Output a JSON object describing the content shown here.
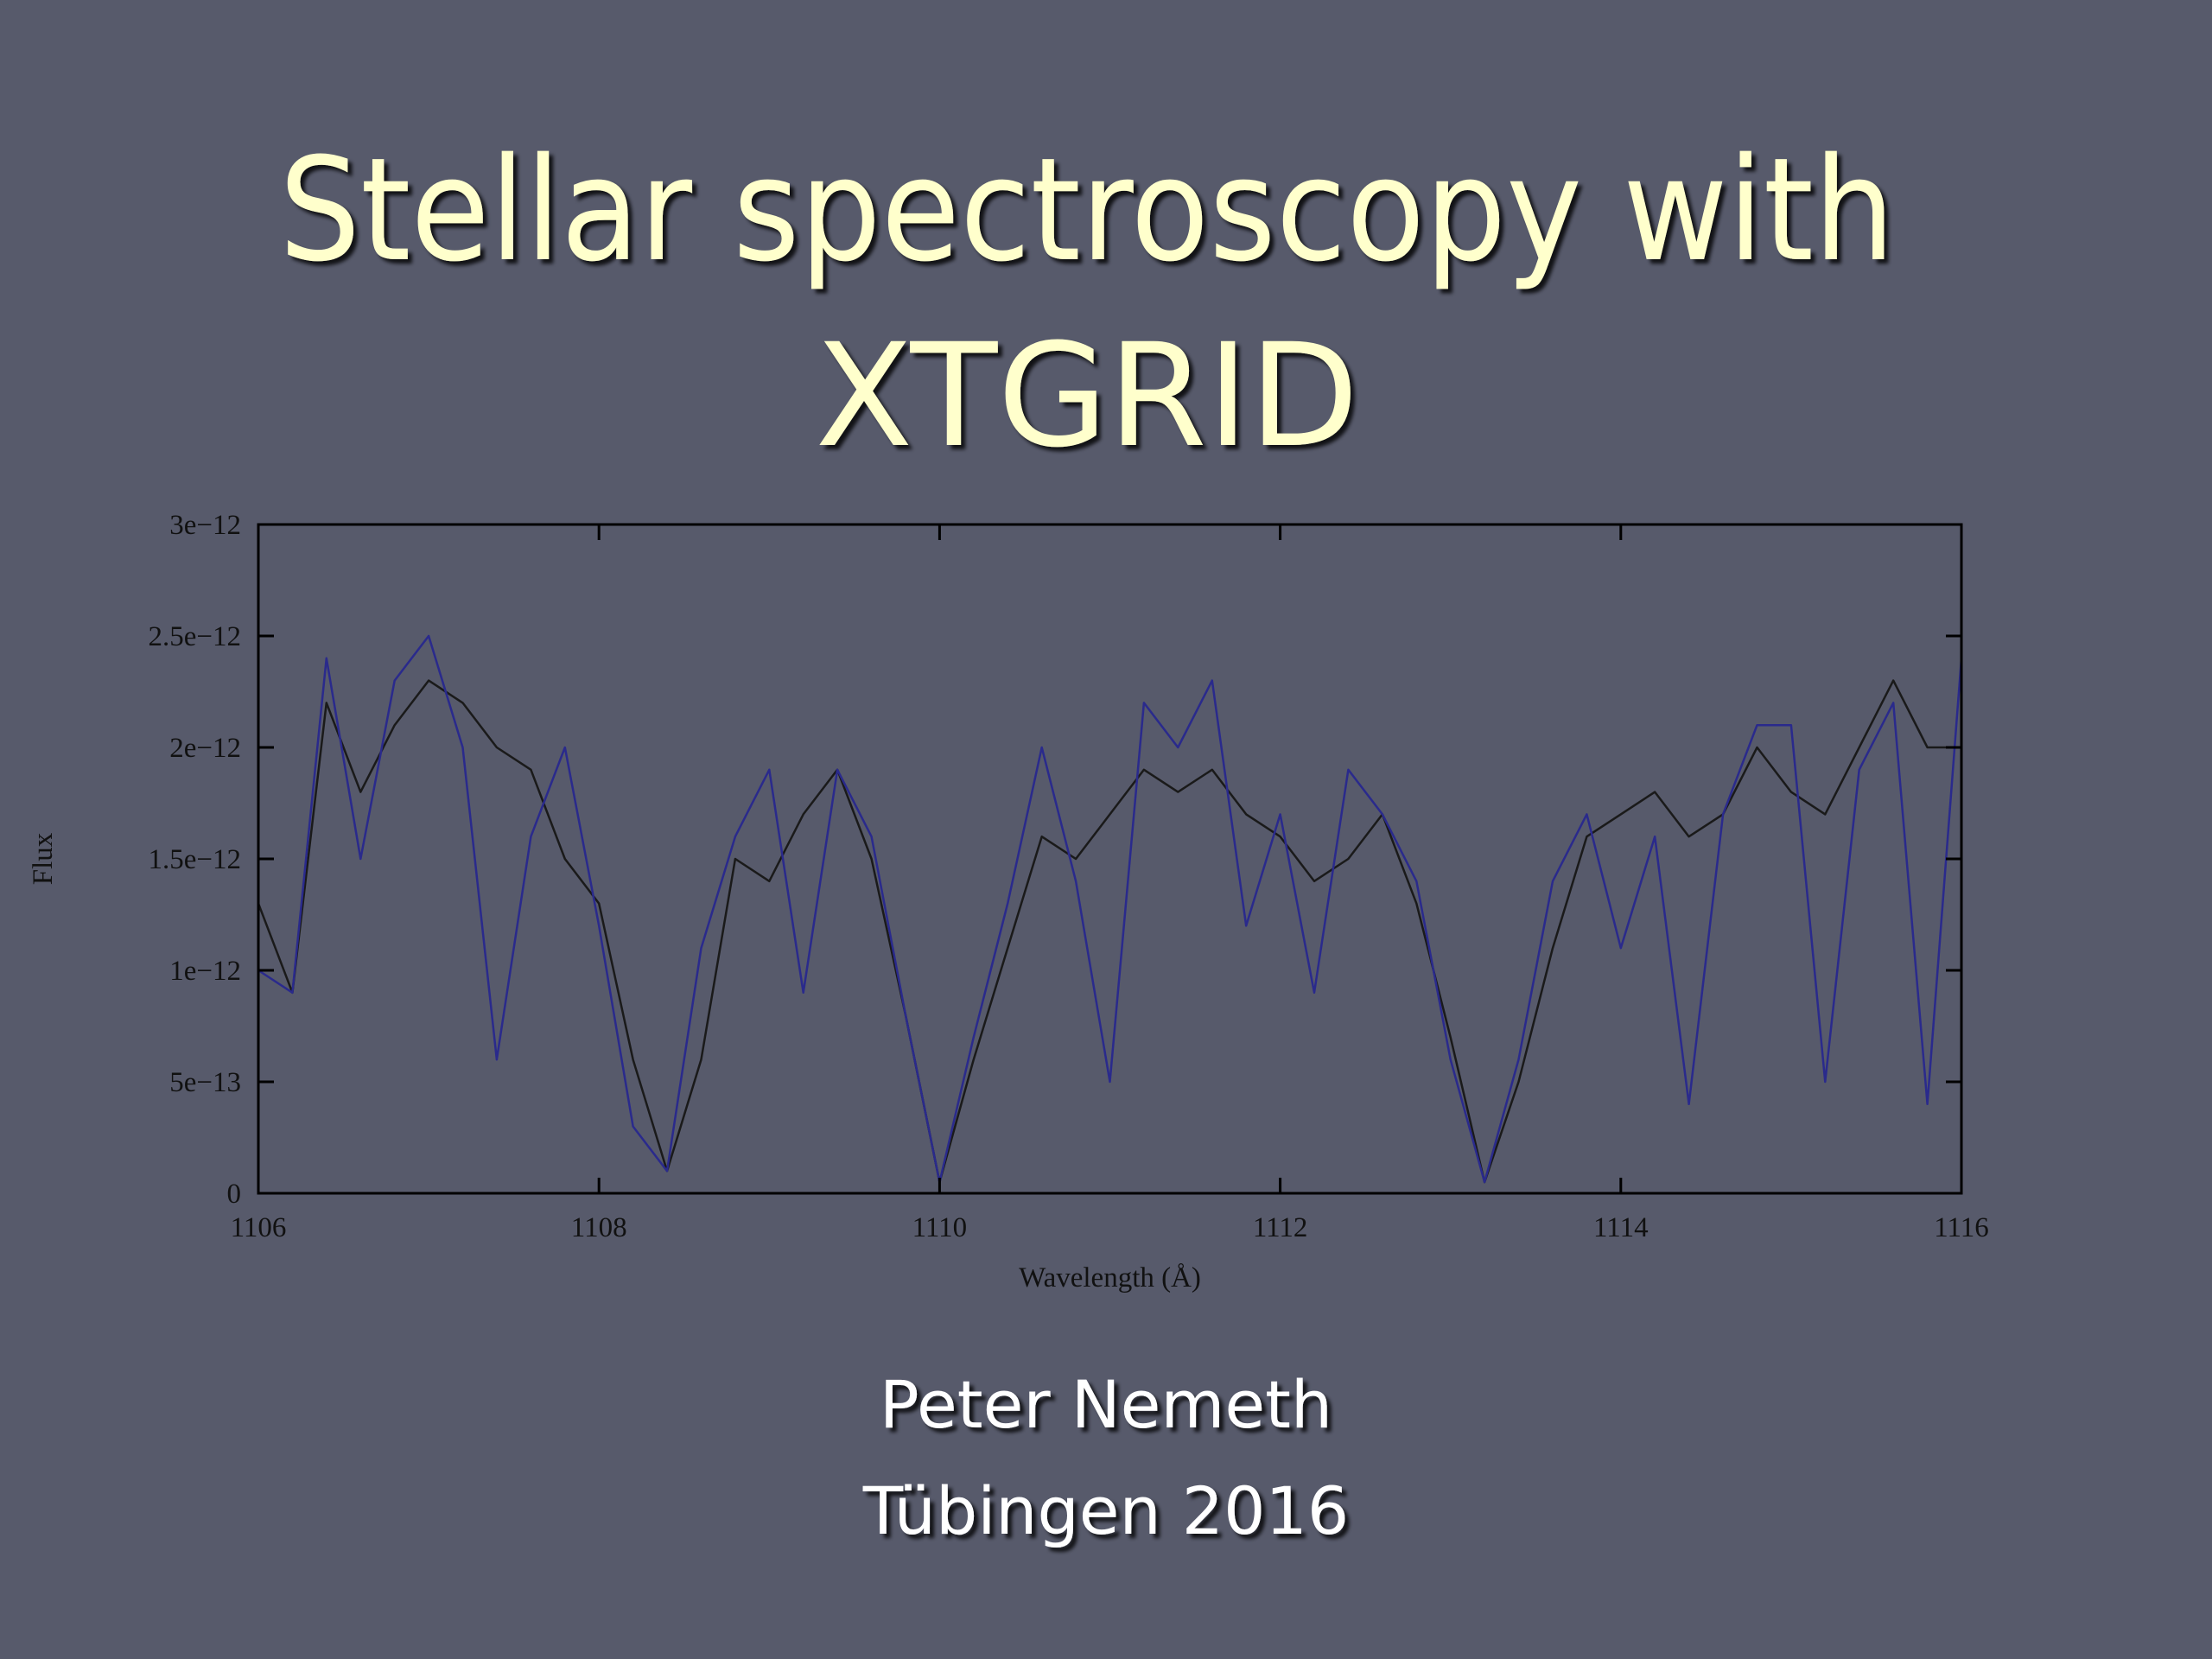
{
  "slide": {
    "title_line1": "Stellar spectroscopy with",
    "title_line2": "XTGRID",
    "author": "Peter Nemeth",
    "event": "Tübingen 2016"
  },
  "chart_data": {
    "type": "line",
    "xlabel": "Wavelength (Å)",
    "ylabel": "Flux",
    "x": [
      1106,
      1106.2,
      1106.4,
      1106.6,
      1106.8,
      1107,
      1107.2,
      1107.4,
      1107.6,
      1107.8,
      1108,
      1108.2,
      1108.4,
      1108.6,
      1108.8,
      1109,
      1109.2,
      1109.4,
      1109.6,
      1109.8,
      1110,
      1110.2,
      1110.4,
      1110.6,
      1110.8,
      1111,
      1111.2,
      1111.4,
      1111.6,
      1111.8,
      1112,
      1112.2,
      1112.4,
      1112.6,
      1112.8,
      1113,
      1113.2,
      1113.4,
      1113.6,
      1113.8,
      1114,
      1114.2,
      1114.4,
      1114.6,
      1114.8,
      1115,
      1115.2,
      1115.4,
      1115.6,
      1115.8,
      1116
    ],
    "series": [
      {
        "color": "#1a1a1a",
        "values": [
          1.3e-12,
          9e-13,
          2.2e-12,
          1.8e-12,
          2.1e-12,
          2.3e-12,
          2.2e-12,
          2e-12,
          1.9e-12,
          1.5e-12,
          1.3e-12,
          6e-13,
          1e-13,
          6e-13,
          1.5e-12,
          1.4e-12,
          1.7e-12,
          1.9e-12,
          1.5e-12,
          8e-13,
          5e-14,
          6e-13,
          1.1e-12,
          1.6e-12,
          1.5e-12,
          1.7e-12,
          1.9e-12,
          1.8e-12,
          1.9e-12,
          1.7e-12,
          1.6e-12,
          1.4e-12,
          1.5e-12,
          1.7e-12,
          1.3e-12,
          7e-13,
          5e-14,
          5e-13,
          1.1e-12,
          1.6e-12,
          1.7e-12,
          1.8e-12,
          1.6e-12,
          1.7e-12,
          2e-12,
          1.8e-12,
          1.7e-12,
          2e-12,
          2.3e-12,
          2e-12,
          2e-12
        ]
      },
      {
        "color": "#2a2a8c",
        "values": [
          1e-12,
          9e-13,
          2.4e-12,
          1.5e-12,
          2.3e-12,
          2.5e-12,
          2e-12,
          6e-13,
          1.6e-12,
          2e-12,
          1.2e-12,
          3e-13,
          1e-13,
          1.1e-12,
          1.6e-12,
          1.9e-12,
          9e-13,
          1.9e-12,
          1.6e-12,
          8e-13,
          5e-14,
          7e-13,
          1.3e-12,
          2e-12,
          1.4e-12,
          5e-13,
          2.2e-12,
          2e-12,
          2.3e-12,
          1.2e-12,
          1.7e-12,
          9e-13,
          1.9e-12,
          1.7e-12,
          1.4e-12,
          6e-13,
          5e-14,
          6e-13,
          1.4e-12,
          1.7e-12,
          1.1e-12,
          1.6e-12,
          4e-13,
          1.7e-12,
          2.1e-12,
          2.1e-12,
          5e-13,
          1.9e-12,
          2.2e-12,
          4e-13,
          2.4e-12
        ]
      }
    ],
    "xlim": [
      1106,
      1116
    ],
    "xticks": [
      1106,
      1108,
      1110,
      1112,
      1114,
      1116
    ],
    "ylim": [
      0,
      3e-12
    ],
    "yticks": [
      0,
      {
        "value": 5e-13,
        "label": "5e−13"
      },
      {
        "value": 1e-12,
        "label": "1e−12"
      },
      {
        "value": 1.5e-12,
        "label": "1.5e−12"
      },
      {
        "value": 2e-12,
        "label": "2e−12"
      },
      {
        "value": 2.5e-12,
        "label": "2.5e−12"
      },
      {
        "value": 3e-12,
        "label": "3e−12"
      }
    ]
  }
}
